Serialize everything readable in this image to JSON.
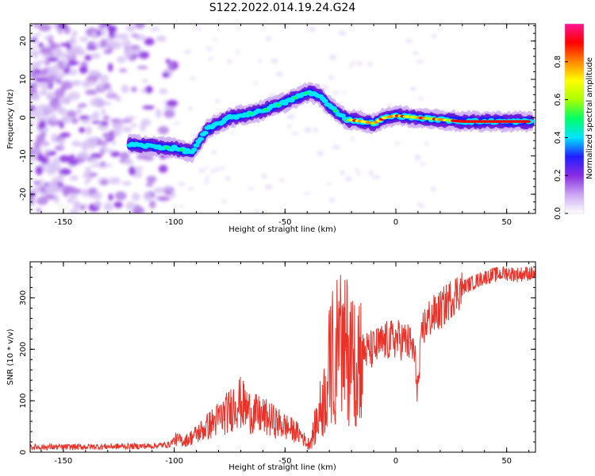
{
  "title": "S122.2022.014.19.24.G24",
  "chart_data": [
    {
      "type": "heatmap",
      "xlabel": "Height of straight line (km)",
      "ylabel": "Frequency (Hz)",
      "xlim": [
        -165,
        63
      ],
      "ylim": [
        -25,
        24.5
      ],
      "xticks": [
        -150,
        -100,
        -50,
        0,
        50
      ],
      "yticks": [
        -20,
        -10,
        0,
        10,
        20
      ],
      "colorbar": {
        "label": "Normalized spectral amplitude",
        "range": [
          0,
          1
        ],
        "ticks": [
          "0.0",
          "0.2",
          "0.4",
          "0.6",
          "0.8"
        ],
        "colors": [
          "#ffffff",
          "#c9a6f2",
          "#8a2be2",
          "#1f1fff",
          "#00e5ff",
          "#00ff66",
          "#aaff00",
          "#ffff00",
          "#ff8800",
          "#ff0000",
          "#ff1493"
        ]
      },
      "ridge": {
        "x": [
          -120,
          -110,
          -100,
          -92,
          -85,
          -75,
          -62,
          -50,
          -40,
          -35,
          -30,
          -22,
          -15,
          -10,
          -5,
          0,
          10,
          20,
          30,
          40,
          50,
          60
        ],
        "y": [
          -7,
          -7.5,
          -8,
          -9,
          -3,
          0,
          1.5,
          4,
          6.5,
          6,
          3,
          -0.5,
          -1,
          -1.5,
          0,
          0.5,
          0,
          -0.5,
          -1,
          -1,
          -1,
          -1
        ]
      }
    },
    {
      "type": "line",
      "xlabel": "Height of straight line (km)",
      "ylabel": "SNR (10 * v/v)",
      "xlim": [
        -165,
        63
      ],
      "ylim": [
        0,
        370
      ],
      "xticks": [
        -150,
        -100,
        -50,
        0,
        50
      ],
      "yticks": [
        0,
        100,
        200,
        300
      ],
      "color": "#e8332a",
      "x": [
        -165,
        -150,
        -130,
        -110,
        -102,
        -100,
        -95,
        -90,
        -85,
        -80,
        -75,
        -72,
        -70,
        -65,
        -60,
        -55,
        -50,
        -45,
        -42,
        -40,
        -38,
        -35,
        -32,
        -30,
        -28,
        -25,
        -22,
        -20,
        -15,
        -10,
        -5,
        0,
        5,
        8,
        10,
        12,
        15,
        20,
        25,
        30,
        35,
        40,
        45,
        50,
        55,
        60,
        63
      ],
      "y": [
        10,
        10,
        11,
        12,
        15,
        25,
        22,
        35,
        50,
        65,
        80,
        100,
        95,
        75,
        70,
        60,
        50,
        40,
        30,
        15,
        25,
        70,
        110,
        160,
        190,
        210,
        200,
        190,
        195,
        200,
        215,
        220,
        215,
        200,
        120,
        240,
        260,
        275,
        300,
        320,
        330,
        340,
        345,
        348,
        345,
        348,
        345
      ]
    }
  ]
}
